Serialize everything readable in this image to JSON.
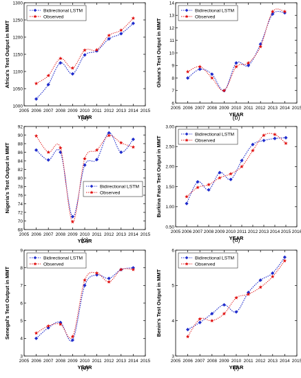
{
  "colors": {
    "lstm": "#1f2ccc",
    "observed": "#e01010",
    "axis": "#000000"
  },
  "chart_data": [
    {
      "type": "line",
      "panel_label": "(a)",
      "xlabel": "YEAR",
      "ylabel": "Africa's Test Output in MMT",
      "xlim": [
        2005,
        2015
      ],
      "ylim": [
        1000,
        1300
      ],
      "xticks": [
        2005,
        2006,
        2007,
        2008,
        2009,
        2010,
        2011,
        2012,
        2013,
        2014,
        2015
      ],
      "yticks": [
        1000,
        1050,
        1100,
        1150,
        1200,
        1250,
        1300
      ],
      "legend": "top-left",
      "series": [
        {
          "name": "Bidirectional LSTM",
          "x": [
            2006,
            2007,
            2008,
            2009,
            2010,
            2011,
            2012,
            2013,
            2014
          ],
          "y": [
            1020,
            1062,
            1125,
            1093,
            1148,
            1160,
            1195,
            1210,
            1240
          ]
        },
        {
          "name": "Observed",
          "x": [
            2006,
            2007,
            2008,
            2009,
            2010,
            2011,
            2012,
            2013,
            2014
          ],
          "y": [
            1065,
            1088,
            1138,
            1110,
            1162,
            1163,
            1205,
            1220,
            1255
          ]
        }
      ]
    },
    {
      "type": "line",
      "panel_label": "(b)",
      "xlabel": "YEAR",
      "ylabel": "Ghana's Test Output in MMT",
      "xlim": [
        2005,
        2015
      ],
      "ylim": [
        6,
        14
      ],
      "xticks": [
        2005,
        2006,
        2007,
        2008,
        2009,
        2010,
        2011,
        2012,
        2013,
        2014,
        2015
      ],
      "yticks": [
        6,
        7,
        8,
        9,
        10,
        11,
        12,
        13,
        14
      ],
      "legend": "top-left",
      "series": [
        {
          "name": "Bidirectional LSTM",
          "x": [
            2006,
            2007,
            2008,
            2009,
            2010,
            2011,
            2012,
            2013,
            2014
          ],
          "y": [
            8.0,
            8.7,
            8.3,
            7.0,
            9.2,
            9.0,
            10.7,
            13.1,
            13.2
          ]
        },
        {
          "name": "Observed",
          "x": [
            2006,
            2007,
            2008,
            2009,
            2010,
            2011,
            2012,
            2013,
            2014
          ],
          "y": [
            8.5,
            8.9,
            8.0,
            7.0,
            8.9,
            9.2,
            10.5,
            13.3,
            13.3
          ]
        }
      ]
    },
    {
      "type": "line",
      "panel_label": "(c)",
      "xlabel": "YEAR",
      "ylabel": "Nigeria's Test Output in MMT",
      "xlim": [
        2005,
        2015
      ],
      "ylim": [
        68,
        92
      ],
      "xticks": [
        2005,
        2006,
        2007,
        2008,
        2009,
        2010,
        2011,
        2012,
        2013,
        2014,
        2015
      ],
      "yticks": [
        68,
        70,
        72,
        74,
        76,
        78,
        80,
        82,
        84,
        86,
        88,
        90,
        92
      ],
      "legend": "bottom-right",
      "series": [
        {
          "name": "Bidirectional LSTM",
          "x": [
            2006,
            2007,
            2008,
            2009,
            2010,
            2011,
            2012,
            2013,
            2014
          ],
          "y": [
            86.5,
            84.2,
            86.0,
            71.0,
            83.0,
            84.3,
            90.5,
            86.0,
            89.0
          ]
        },
        {
          "name": "Observed",
          "x": [
            2006,
            2007,
            2008,
            2009,
            2010,
            2011,
            2012,
            2013,
            2014
          ],
          "y": [
            89.8,
            86.0,
            87.0,
            69.8,
            84.5,
            86.5,
            89.9,
            88.2,
            87.2
          ]
        }
      ]
    },
    {
      "type": "line",
      "panel_label": "(d)",
      "xlabel": "YEAR",
      "ylabel": "Burkina Faso Test Output in MMT",
      "xlim": [
        2005,
        2016
      ],
      "ylim": [
        0.5,
        3.0
      ],
      "xticks": [
        2005,
        2006,
        2007,
        2008,
        2009,
        2010,
        2011,
        2012,
        2013,
        2014,
        2015,
        2016
      ],
      "yticks": [
        0.5,
        1.0,
        1.5,
        2.0,
        2.5,
        3.0
      ],
      "yticklabels": [
        "0.50",
        "1.00",
        "1.50",
        "2.00",
        "2.50",
        "3.00"
      ],
      "legend": "top-left",
      "series": [
        {
          "name": "Bidirectional LSTM",
          "x": [
            2006,
            2007,
            2008,
            2009,
            2010,
            2011,
            2012,
            2013,
            2014,
            2015
          ],
          "y": [
            1.08,
            1.62,
            1.42,
            1.85,
            1.68,
            2.15,
            2.55,
            2.65,
            2.7,
            2.72
          ]
        },
        {
          "name": "Observed",
          "x": [
            2006,
            2007,
            2008,
            2009,
            2010,
            2011,
            2012,
            2013,
            2014,
            2015
          ],
          "y": [
            1.25,
            1.48,
            1.55,
            1.72,
            1.82,
            2.0,
            2.4,
            2.78,
            2.8,
            2.58
          ]
        }
      ]
    },
    {
      "type": "line",
      "panel_label": "(e)",
      "xlabel": "YEAR",
      "ylabel": "Senegal's Test Output in MMT",
      "xlim": [
        2005,
        2015
      ],
      "ylim": [
        3,
        9
      ],
      "xticks": [
        2005,
        2006,
        2007,
        2008,
        2009,
        2010,
        2011,
        2012,
        2013,
        2014,
        2015
      ],
      "yticks": [
        3,
        4,
        5,
        6,
        7,
        8,
        9
      ],
      "legend": "top-left",
      "series": [
        {
          "name": "Bidirectional LSTM",
          "x": [
            2006,
            2007,
            2008,
            2009,
            2010,
            2011,
            2012,
            2013,
            2014
          ],
          "y": [
            4.0,
            4.6,
            4.9,
            3.9,
            7.0,
            7.6,
            7.4,
            7.9,
            8.0
          ]
        },
        {
          "name": "Observed",
          "x": [
            2006,
            2007,
            2008,
            2009,
            2010,
            2011,
            2012,
            2013,
            2014
          ],
          "y": [
            4.3,
            4.7,
            4.8,
            4.1,
            7.3,
            7.7,
            7.2,
            7.9,
            7.9
          ]
        }
      ]
    },
    {
      "type": "line",
      "panel_label": "(f)",
      "xlabel": "YEAR",
      "ylabel": "Benin's Test Output in MMT",
      "xlim": [
        2005,
        2015
      ],
      "ylim": [
        3,
        6
      ],
      "xticks": [
        2005,
        2006,
        2007,
        2008,
        2009,
        2010,
        2011,
        2012,
        2013,
        2014,
        2015
      ],
      "yticks": [
        3,
        4,
        5,
        6
      ],
      "legend": "top-left",
      "series": [
        {
          "name": "Bidirectional LSTM",
          "x": [
            2006,
            2007,
            2008,
            2009,
            2010,
            2011,
            2012,
            2013,
            2014
          ],
          "y": [
            3.75,
            3.95,
            4.2,
            4.45,
            4.25,
            4.8,
            5.15,
            5.35,
            5.8
          ]
        },
        {
          "name": "Observed",
          "x": [
            2006,
            2007,
            2008,
            2009,
            2010,
            2011,
            2012,
            2013,
            2014
          ],
          "y": [
            3.55,
            4.05,
            4.0,
            4.2,
            4.65,
            4.75,
            4.95,
            5.25,
            5.7
          ]
        }
      ]
    }
  ]
}
